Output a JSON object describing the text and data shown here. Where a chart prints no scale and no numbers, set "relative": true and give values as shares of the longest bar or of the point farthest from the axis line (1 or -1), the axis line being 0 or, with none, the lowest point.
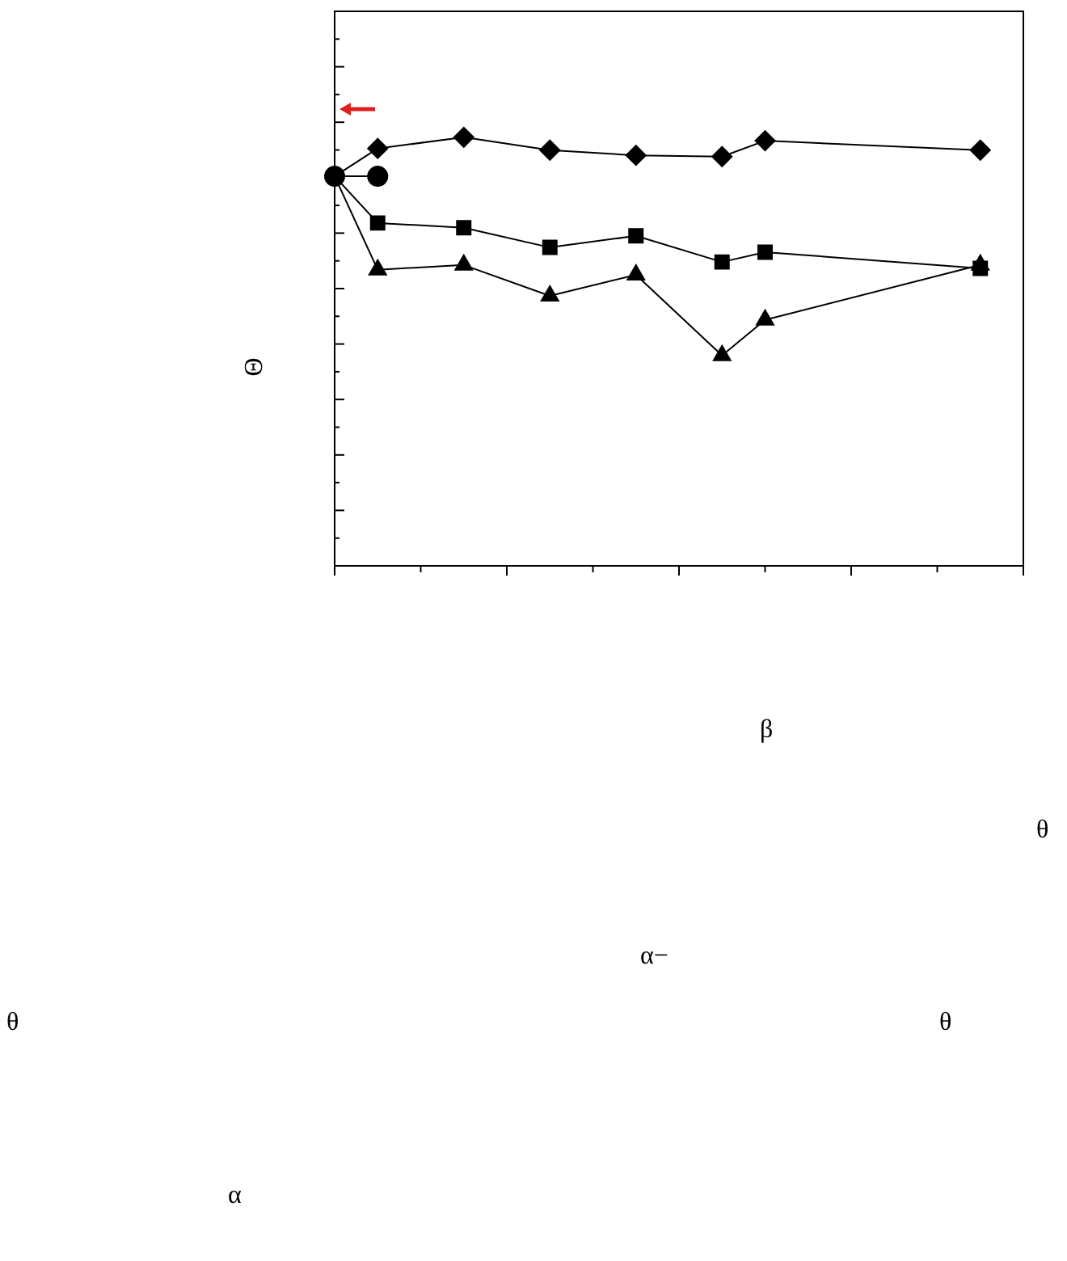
{
  "chart_data": {
    "type": "line",
    "relative": true,
    "ylabel": "Θ",
    "legend": false,
    "grid": false,
    "categories": [
      null,
      null,
      null,
      null,
      null,
      null,
      null,
      null,
      null,
      null,
      null,
      null,
      null,
      null,
      null,
      null,
      null
    ],
    "series": [
      {
        "color": "#000000",
        "marker": "circle",
        "values": [
          0.909,
          0.909,
          null,
          null,
          null,
          null,
          null,
          null,
          null,
          null,
          null,
          null,
          null,
          null,
          null,
          null,
          null
        ]
      },
      {
        "color": "#000000",
        "marker": "diamond",
        "values": [
          0.909,
          0.974,
          null,
          1,
          null,
          0.97,
          null,
          0.958,
          null,
          0.955,
          0.992,
          null,
          null,
          null,
          null,
          0.97,
          null
        ]
      },
      {
        "color": "#000000",
        "marker": "square",
        "values": [
          0.909,
          0.8,
          null,
          0.789,
          null,
          0.743,
          null,
          0.77,
          null,
          0.709,
          0.732,
          null,
          null,
          null,
          null,
          0.694,
          null
        ]
      },
      {
        "color": "#000000",
        "marker": "triangle",
        "values": [
          0.909,
          0.691,
          null,
          0.702,
          null,
          0.63,
          null,
          0.679,
          null,
          0.491,
          0.574,
          null,
          null,
          null,
          null,
          0.702,
          null
        ]
      }
    ],
    "annotations": [
      "β",
      "θ",
      "α−",
      "θ",
      "θ",
      "α"
    ]
  }
}
